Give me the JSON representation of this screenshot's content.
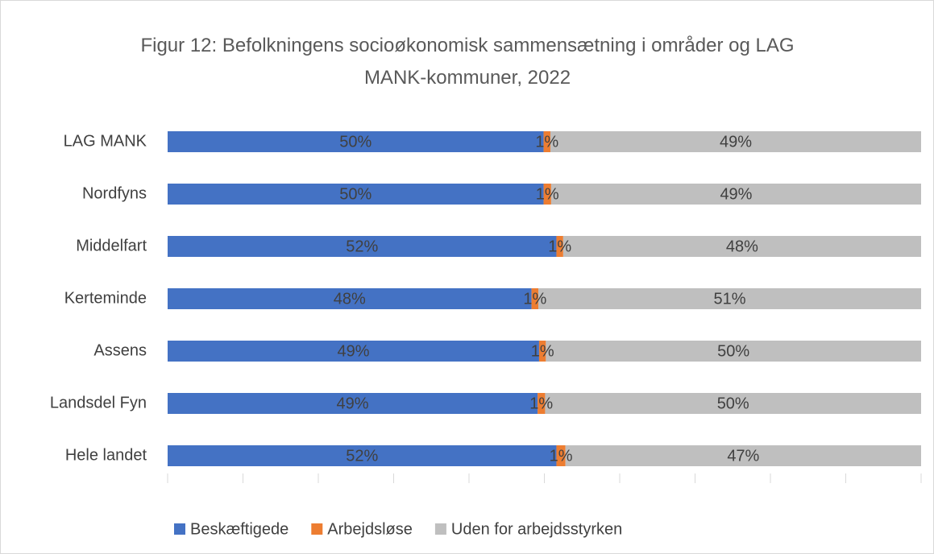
{
  "chart_data": {
    "type": "stacked_barh",
    "title": "Figur 12: Befolkningens socioøkonomisk sammensætning i områder og LAG MANK-kommuner, 2022",
    "categories": [
      "LAG MANK",
      "Nordfyns",
      "Middelfart",
      "Kerteminde",
      "Assens",
      "Landsdel Fyn",
      "Hele landet"
    ],
    "series": [
      {
        "name": "Beskæftigede",
        "color": "#4472c4",
        "values": [
          49.9,
          49.9,
          51.6,
          48.3,
          49.3,
          49.1,
          51.6
        ],
        "value_labels": [
          "50%",
          "50%",
          "52%",
          "48%",
          "49%",
          "49%",
          "52%"
        ]
      },
      {
        "name": "Arbejdsløse",
        "color": "#ed7d31",
        "values": [
          0.9,
          1.0,
          0.9,
          0.9,
          0.9,
          1.0,
          1.2
        ],
        "value_labels": [
          "1%",
          "1%",
          "1%",
          "1%",
          "1%",
          "1%",
          "1%"
        ]
      },
      {
        "name": "Uden for arbejdsstyrken",
        "color": "#bfbfbf",
        "values": [
          49.2,
          49.1,
          47.5,
          50.8,
          49.8,
          49.9,
          47.2
        ],
        "value_labels": [
          "49%",
          "49%",
          "48%",
          "51%",
          "50%",
          "50%",
          "47%"
        ]
      }
    ],
    "xlim": [
      0,
      100
    ],
    "xticks": [
      0,
      10,
      20,
      30,
      40,
      50,
      60,
      70,
      80,
      90,
      100
    ],
    "legend": "bottom"
  }
}
